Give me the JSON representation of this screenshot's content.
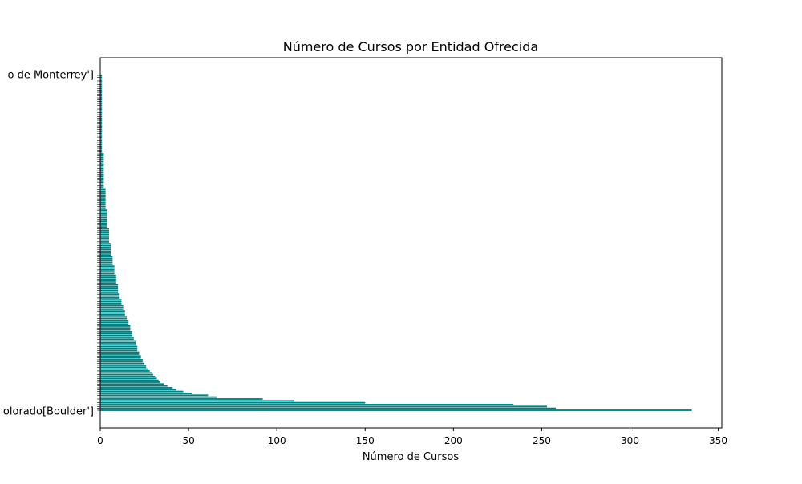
{
  "chart_data": {
    "type": "bar",
    "orientation": "horizontal",
    "title": "Número de Cursos por Entidad Ofrecida",
    "xlabel": "Número de Cursos",
    "ylabel": "",
    "xlim": [
      0,
      352
    ],
    "x_ticks": [
      0,
      50,
      100,
      150,
      200,
      250,
      300,
      350
    ],
    "grid": false,
    "legend": "none",
    "bar_color": "#008080",
    "visible_category_labels": [
      "o de Monterrey']",
      "olorado[Boulder']"
    ],
    "values": [
      335,
      258,
      253,
      234,
      150,
      110,
      92,
      66,
      61,
      52,
      47,
      43,
      41,
      38,
      36,
      34,
      33,
      32,
      31,
      30,
      29,
      28,
      27,
      26,
      26,
      25,
      24,
      24,
      23,
      23,
      22,
      22,
      21,
      21,
      21,
      20,
      20,
      20,
      19,
      19,
      18,
      18,
      18,
      17,
      17,
      17,
      16,
      16,
      16,
      15,
      15,
      14,
      14,
      14,
      13,
      13,
      13,
      12,
      12,
      12,
      11,
      11,
      11,
      10,
      10,
      10,
      10,
      10,
      9,
      9,
      9,
      9,
      9,
      8,
      8,
      8,
      8,
      8,
      7,
      7,
      7,
      7,
      7,
      6,
      6,
      6,
      6,
      6,
      6,
      6,
      5,
      5,
      5,
      5,
      5,
      5,
      5,
      5,
      4,
      4,
      4,
      4,
      4,
      4,
      4,
      4,
      4,
      4,
      3,
      3,
      3,
      3,
      3,
      3,
      3,
      3,
      3,
      3,
      3,
      2,
      2,
      2,
      2,
      2,
      2,
      2,
      2,
      2,
      2,
      2,
      2,
      2,
      2,
      2,
      2,
      2,
      2,
      2,
      1,
      1,
      1,
      1,
      1,
      1,
      1,
      1,
      1,
      1,
      1,
      1,
      1,
      1,
      1,
      1,
      1,
      1,
      1,
      1,
      1,
      1,
      1,
      1,
      1,
      1,
      1,
      1,
      1,
      1,
      1,
      1,
      1,
      1,
      1,
      1,
      1,
      1,
      1,
      1,
      1,
      1
    ]
  }
}
